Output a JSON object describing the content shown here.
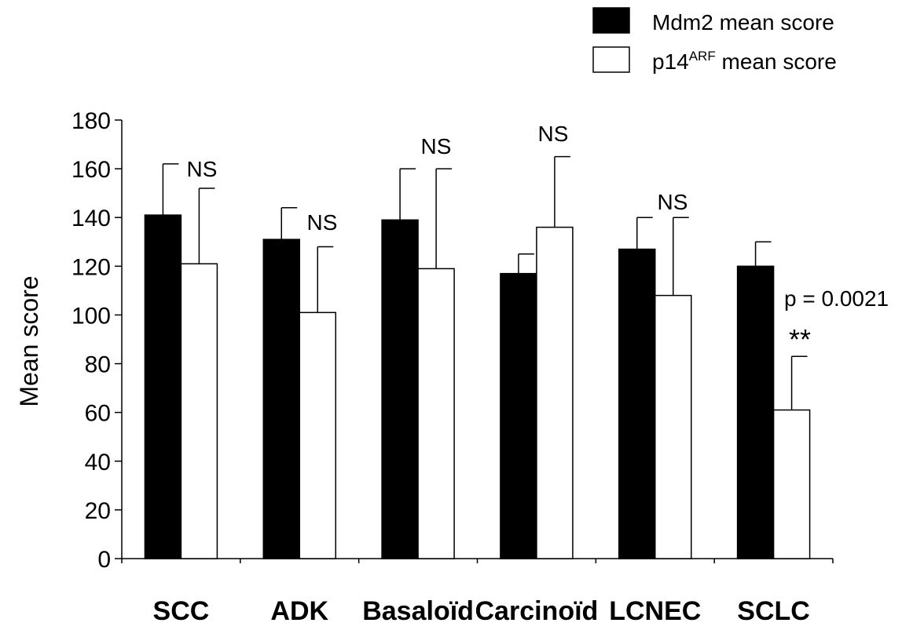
{
  "chart_data": {
    "type": "bar",
    "categories": [
      "SCC",
      "ADK",
      "Basaloïd",
      "Carcinoïd",
      "LCNEC",
      "SCLC"
    ],
    "series": [
      {
        "name": "Mdm2 mean score",
        "color": "#000000",
        "values": [
          141,
          131,
          139,
          117,
          127,
          120
        ],
        "error_upper": [
          162,
          144,
          160,
          125,
          140,
          130
        ]
      },
      {
        "name": "p14ARF mean score",
        "name_base": "p14",
        "name_sup": "ARF",
        "name_rest": " mean score",
        "color": "#ffffff",
        "values": [
          121,
          101,
          119,
          136,
          108,
          61
        ],
        "error_upper": [
          152,
          128,
          160,
          165,
          140,
          83
        ]
      }
    ],
    "ylabel": "Mean score",
    "xlabel": "",
    "ylim": [
      0,
      180
    ],
    "yticks": [
      0,
      20,
      40,
      60,
      80,
      100,
      120,
      140,
      160,
      180
    ],
    "grid": false,
    "legend_position": "top-right",
    "annotations": [
      "NS",
      "NS",
      "NS",
      "NS",
      "NS",
      "p = 0.0021",
      "**"
    ]
  }
}
